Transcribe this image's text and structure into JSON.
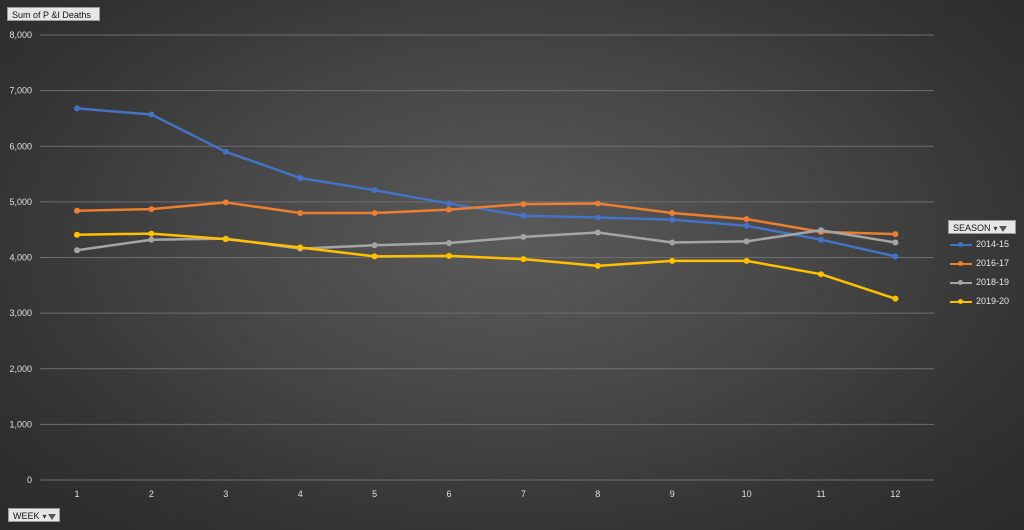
{
  "measure_button": {
    "label": "Sum of P &I Deaths"
  },
  "axis_button": {
    "label": "WEEK"
  },
  "legend_button": {
    "label": "SEASON"
  },
  "icons": {
    "dropdown": "dropdown-arrow-icon",
    "filter": "filter-funnel-icon"
  },
  "chart_data": {
    "type": "line",
    "title": "",
    "xlabel": "WEEK",
    "ylabel": "Sum of P &I Deaths",
    "x": [
      1,
      2,
      3,
      4,
      5,
      6,
      7,
      8,
      9,
      10,
      11,
      12
    ],
    "x_tick_labels": [
      "1",
      "2",
      "3",
      "4",
      "5",
      "6",
      "7",
      "8",
      "9",
      "10",
      "11",
      "12"
    ],
    "ylim": [
      0,
      8000
    ],
    "y_tick_labels": [
      "0",
      "1,000",
      "2,000",
      "3,000",
      "4,000",
      "5,000",
      "6,000",
      "7,000",
      "8,000"
    ],
    "y_ticks": [
      0,
      1000,
      2000,
      3000,
      4000,
      5000,
      6000,
      7000,
      8000
    ],
    "grid": true,
    "legend_title": "SEASON",
    "legend_position": "right",
    "series": [
      {
        "name": "2014-15",
        "color": "#4472c4",
        "values": [
          6680,
          6570,
          5900,
          5430,
          5210,
          4970,
          4750,
          4720,
          4680,
          4570,
          4320,
          4020
        ]
      },
      {
        "name": "2016-17",
        "color": "#ed7d31",
        "values": [
          4840,
          4870,
          4990,
          4800,
          4800,
          4860,
          4960,
          4970,
          4800,
          4690,
          4460,
          4420
        ]
      },
      {
        "name": "2018-19",
        "color": "#a5a5a5",
        "values": [
          4130,
          4320,
          4340,
          4160,
          4220,
          4260,
          4370,
          4450,
          4270,
          4290,
          4490,
          4270
        ]
      },
      {
        "name": "2019-20",
        "color": "#ffc000",
        "values": [
          4410,
          4430,
          4330,
          4180,
          4020,
          4030,
          3970,
          3850,
          3940,
          3940,
          3700,
          3260
        ]
      }
    ]
  }
}
